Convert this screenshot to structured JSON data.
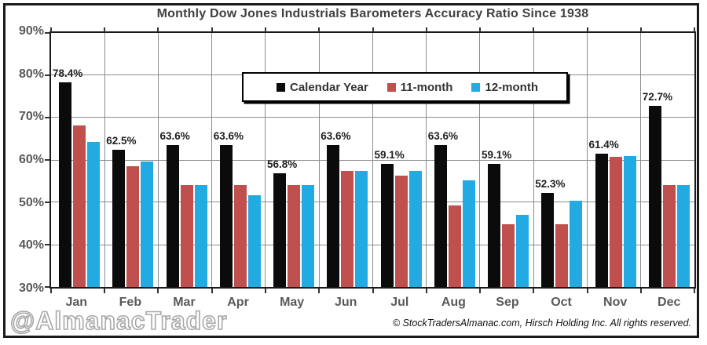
{
  "title": "Monthly Dow Jones Industrials Barometers Accuracy Ratio Since 1938",
  "watermark": "@AlmanacTrader",
  "copyright": "© StockTradersAlmanac.com, Hirsch Holding Inc. All rights reserved.",
  "colors": {
    "calendar_year": "#0b0b0b",
    "eleven_month": "#c0504d",
    "twelve_month": "#22aae3",
    "grid": "#8c8c8c",
    "axis_text": "#595959",
    "title_text": "#404040"
  },
  "chart_data": {
    "type": "bar",
    "categories": [
      "Jan",
      "Feb",
      "Mar",
      "Apr",
      "May",
      "Jun",
      "Jul",
      "Aug",
      "Sep",
      "Oct",
      "Nov",
      "Dec"
    ],
    "series": [
      {
        "name": "Calendar Year",
        "color": "#0b0b0b",
        "values": [
          78.4,
          62.5,
          63.6,
          63.6,
          56.8,
          63.6,
          59.1,
          63.6,
          59.1,
          52.3,
          61.4,
          72.7
        ],
        "data_labels": [
          "78.4%",
          "62.5%",
          "63.6%",
          "63.6%",
          "56.8%",
          "63.6%",
          "59.1%",
          "63.6%",
          "59.1%",
          "52.3%",
          "61.4%",
          "72.7%"
        ]
      },
      {
        "name": "11-month",
        "color": "#c0504d",
        "values": [
          68.2,
          58.5,
          54.0,
          54.0,
          54.0,
          57.5,
          56.3,
          49.3,
          44.9,
          44.9,
          60.7,
          54.0
        ]
      },
      {
        "name": "12-month",
        "color": "#22aae3",
        "values": [
          64.2,
          59.7,
          54.0,
          51.7,
          54.0,
          57.5,
          57.4,
          55.2,
          47.0,
          50.4,
          60.9,
          54.0
        ]
      }
    ],
    "title": "Monthly Dow Jones Industrials Barometers Accuracy Ratio Since 1938",
    "xlabel": "",
    "ylabel": "",
    "ylim": [
      30,
      90
    ],
    "yticks": [
      90,
      80,
      70,
      60,
      50,
      40,
      30
    ],
    "ytick_suffix": "%",
    "grid": true,
    "legend_position": "top-center",
    "labeled_series": "Calendar Year"
  }
}
